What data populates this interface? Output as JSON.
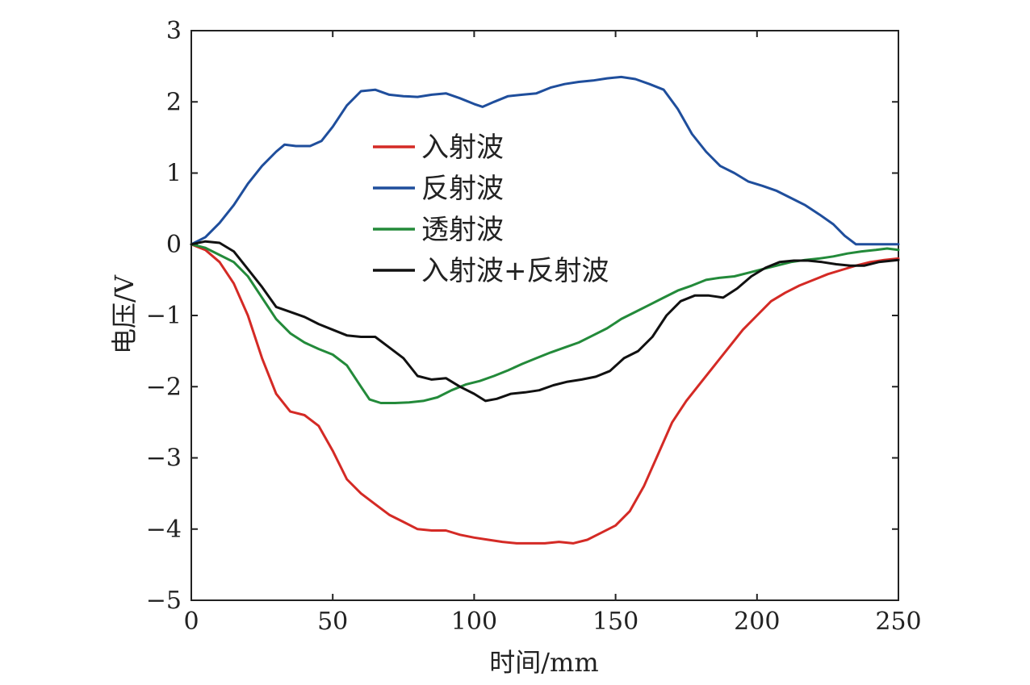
{
  "chart_data": {
    "type": "line",
    "title": "",
    "xlabel": "时间/mm",
    "ylabel": "电压/V",
    "xlim": [
      0,
      250
    ],
    "ylim": [
      -5,
      3
    ],
    "xticks": [
      0,
      50,
      100,
      150,
      200,
      250
    ],
    "yticks": [
      3,
      2,
      1,
      0,
      -1,
      -2,
      -3,
      -4,
      -5
    ],
    "xtick_labels": [
      "0",
      "50",
      "100",
      "150",
      "200",
      "250"
    ],
    "ytick_labels": [
      "3",
      "2",
      "1",
      "0",
      "−1",
      "−2",
      "−3",
      "−4",
      "−5"
    ],
    "grid": false,
    "legend_position": "upper-center",
    "series": [
      {
        "name": "入射波",
        "color": "#d42a25",
        "points": [
          [
            0,
            0
          ],
          [
            5,
            -0.08
          ],
          [
            10,
            -0.25
          ],
          [
            15,
            -0.55
          ],
          [
            20,
            -1.0
          ],
          [
            25,
            -1.6
          ],
          [
            30,
            -2.1
          ],
          [
            35,
            -2.35
          ],
          [
            40,
            -2.4
          ],
          [
            45,
            -2.55
          ],
          [
            50,
            -2.9
          ],
          [
            55,
            -3.3
          ],
          [
            60,
            -3.5
          ],
          [
            65,
            -3.65
          ],
          [
            70,
            -3.8
          ],
          [
            75,
            -3.9
          ],
          [
            80,
            -4.0
          ],
          [
            85,
            -4.02
          ],
          [
            90,
            -4.02
          ],
          [
            95,
            -4.08
          ],
          [
            100,
            -4.12
          ],
          [
            105,
            -4.15
          ],
          [
            110,
            -4.18
          ],
          [
            115,
            -4.2
          ],
          [
            120,
            -4.2
          ],
          [
            125,
            -4.2
          ],
          [
            130,
            -4.18
          ],
          [
            135,
            -4.2
          ],
          [
            140,
            -4.15
          ],
          [
            145,
            -4.05
          ],
          [
            150,
            -3.95
          ],
          [
            155,
            -3.75
          ],
          [
            160,
            -3.4
          ],
          [
            165,
            -2.95
          ],
          [
            170,
            -2.5
          ],
          [
            175,
            -2.2
          ],
          [
            180,
            -1.95
          ],
          [
            185,
            -1.7
          ],
          [
            190,
            -1.45
          ],
          [
            195,
            -1.2
          ],
          [
            200,
            -1.0
          ],
          [
            205,
            -0.8
          ],
          [
            210,
            -0.68
          ],
          [
            215,
            -0.58
          ],
          [
            220,
            -0.5
          ],
          [
            225,
            -0.42
          ],
          [
            230,
            -0.36
          ],
          [
            235,
            -0.3
          ],
          [
            240,
            -0.25
          ],
          [
            245,
            -0.22
          ],
          [
            250,
            -0.2
          ]
        ]
      },
      {
        "name": "反射波",
        "color": "#1f4e9c",
        "points": [
          [
            0,
            0
          ],
          [
            5,
            0.1
          ],
          [
            10,
            0.3
          ],
          [
            15,
            0.55
          ],
          [
            20,
            0.85
          ],
          [
            25,
            1.1
          ],
          [
            30,
            1.3
          ],
          [
            33,
            1.4
          ],
          [
            37,
            1.38
          ],
          [
            42,
            1.38
          ],
          [
            46,
            1.45
          ],
          [
            50,
            1.65
          ],
          [
            55,
            1.95
          ],
          [
            60,
            2.15
          ],
          [
            65,
            2.17
          ],
          [
            70,
            2.1
          ],
          [
            75,
            2.08
          ],
          [
            80,
            2.07
          ],
          [
            85,
            2.1
          ],
          [
            90,
            2.12
          ],
          [
            95,
            2.05
          ],
          [
            100,
            1.97
          ],
          [
            103,
            1.93
          ],
          [
            107,
            2.0
          ],
          [
            112,
            2.08
          ],
          [
            117,
            2.1
          ],
          [
            122,
            2.12
          ],
          [
            127,
            2.2
          ],
          [
            132,
            2.25
          ],
          [
            137,
            2.28
          ],
          [
            142,
            2.3
          ],
          [
            147,
            2.33
          ],
          [
            152,
            2.35
          ],
          [
            157,
            2.32
          ],
          [
            162,
            2.25
          ],
          [
            167,
            2.17
          ],
          [
            172,
            1.9
          ],
          [
            177,
            1.55
          ],
          [
            182,
            1.3
          ],
          [
            187,
            1.1
          ],
          [
            192,
            1.0
          ],
          [
            197,
            0.88
          ],
          [
            202,
            0.82
          ],
          [
            207,
            0.75
          ],
          [
            212,
            0.65
          ],
          [
            217,
            0.55
          ],
          [
            222,
            0.42
          ],
          [
            227,
            0.28
          ],
          [
            231,
            0.12
          ],
          [
            235,
            0.0
          ],
          [
            240,
            0.0
          ],
          [
            245,
            0.0
          ],
          [
            250,
            0.0
          ]
        ]
      },
      {
        "name": "透射波",
        "color": "#238a3a",
        "points": [
          [
            0,
            0
          ],
          [
            5,
            -0.05
          ],
          [
            10,
            -0.15
          ],
          [
            15,
            -0.25
          ],
          [
            20,
            -0.45
          ],
          [
            25,
            -0.75
          ],
          [
            30,
            -1.05
          ],
          [
            35,
            -1.25
          ],
          [
            40,
            -1.38
          ],
          [
            45,
            -1.47
          ],
          [
            50,
            -1.55
          ],
          [
            55,
            -1.7
          ],
          [
            60,
            -2.0
          ],
          [
            63,
            -2.18
          ],
          [
            67,
            -2.23
          ],
          [
            72,
            -2.23
          ],
          [
            77,
            -2.22
          ],
          [
            82,
            -2.2
          ],
          [
            87,
            -2.15
          ],
          [
            92,
            -2.05
          ],
          [
            97,
            -1.97
          ],
          [
            102,
            -1.92
          ],
          [
            107,
            -1.85
          ],
          [
            112,
            -1.77
          ],
          [
            117,
            -1.68
          ],
          [
            122,
            -1.6
          ],
          [
            127,
            -1.52
          ],
          [
            132,
            -1.45
          ],
          [
            137,
            -1.38
          ],
          [
            142,
            -1.28
          ],
          [
            147,
            -1.18
          ],
          [
            152,
            -1.05
          ],
          [
            157,
            -0.95
          ],
          [
            162,
            -0.85
          ],
          [
            167,
            -0.75
          ],
          [
            172,
            -0.65
          ],
          [
            177,
            -0.58
          ],
          [
            182,
            -0.5
          ],
          [
            187,
            -0.47
          ],
          [
            192,
            -0.45
          ],
          [
            197,
            -0.4
          ],
          [
            202,
            -0.35
          ],
          [
            207,
            -0.3
          ],
          [
            212,
            -0.25
          ],
          [
            217,
            -0.22
          ],
          [
            222,
            -0.2
          ],
          [
            227,
            -0.17
          ],
          [
            232,
            -0.13
          ],
          [
            237,
            -0.1
          ],
          [
            242,
            -0.08
          ],
          [
            246,
            -0.06
          ],
          [
            250,
            -0.08
          ]
        ]
      },
      {
        "name": "入射波+反射波",
        "color": "#111111",
        "points": [
          [
            0,
            0
          ],
          [
            5,
            0.04
          ],
          [
            10,
            0.02
          ],
          [
            15,
            -0.1
          ],
          [
            20,
            -0.35
          ],
          [
            25,
            -0.6
          ],
          [
            30,
            -0.88
          ],
          [
            35,
            -0.95
          ],
          [
            40,
            -1.02
          ],
          [
            45,
            -1.12
          ],
          [
            50,
            -1.2
          ],
          [
            55,
            -1.28
          ],
          [
            60,
            -1.3
          ],
          [
            65,
            -1.3
          ],
          [
            70,
            -1.45
          ],
          [
            75,
            -1.6
          ],
          [
            80,
            -1.85
          ],
          [
            85,
            -1.9
          ],
          [
            90,
            -1.88
          ],
          [
            95,
            -2.0
          ],
          [
            100,
            -2.1
          ],
          [
            104,
            -2.2
          ],
          [
            108,
            -2.17
          ],
          [
            113,
            -2.1
          ],
          [
            118,
            -2.08
          ],
          [
            123,
            -2.05
          ],
          [
            128,
            -1.98
          ],
          [
            133,
            -1.93
          ],
          [
            138,
            -1.9
          ],
          [
            143,
            -1.86
          ],
          [
            148,
            -1.78
          ],
          [
            153,
            -1.6
          ],
          [
            158,
            -1.5
          ],
          [
            163,
            -1.3
          ],
          [
            168,
            -1.0
          ],
          [
            173,
            -0.8
          ],
          [
            178,
            -0.72
          ],
          [
            183,
            -0.72
          ],
          [
            188,
            -0.75
          ],
          [
            193,
            -0.62
          ],
          [
            198,
            -0.45
          ],
          [
            203,
            -0.33
          ],
          [
            208,
            -0.25
          ],
          [
            213,
            -0.23
          ],
          [
            218,
            -0.23
          ],
          [
            223,
            -0.25
          ],
          [
            228,
            -0.28
          ],
          [
            233,
            -0.3
          ],
          [
            238,
            -0.3
          ],
          [
            243,
            -0.25
          ],
          [
            250,
            -0.22
          ]
        ]
      }
    ]
  }
}
